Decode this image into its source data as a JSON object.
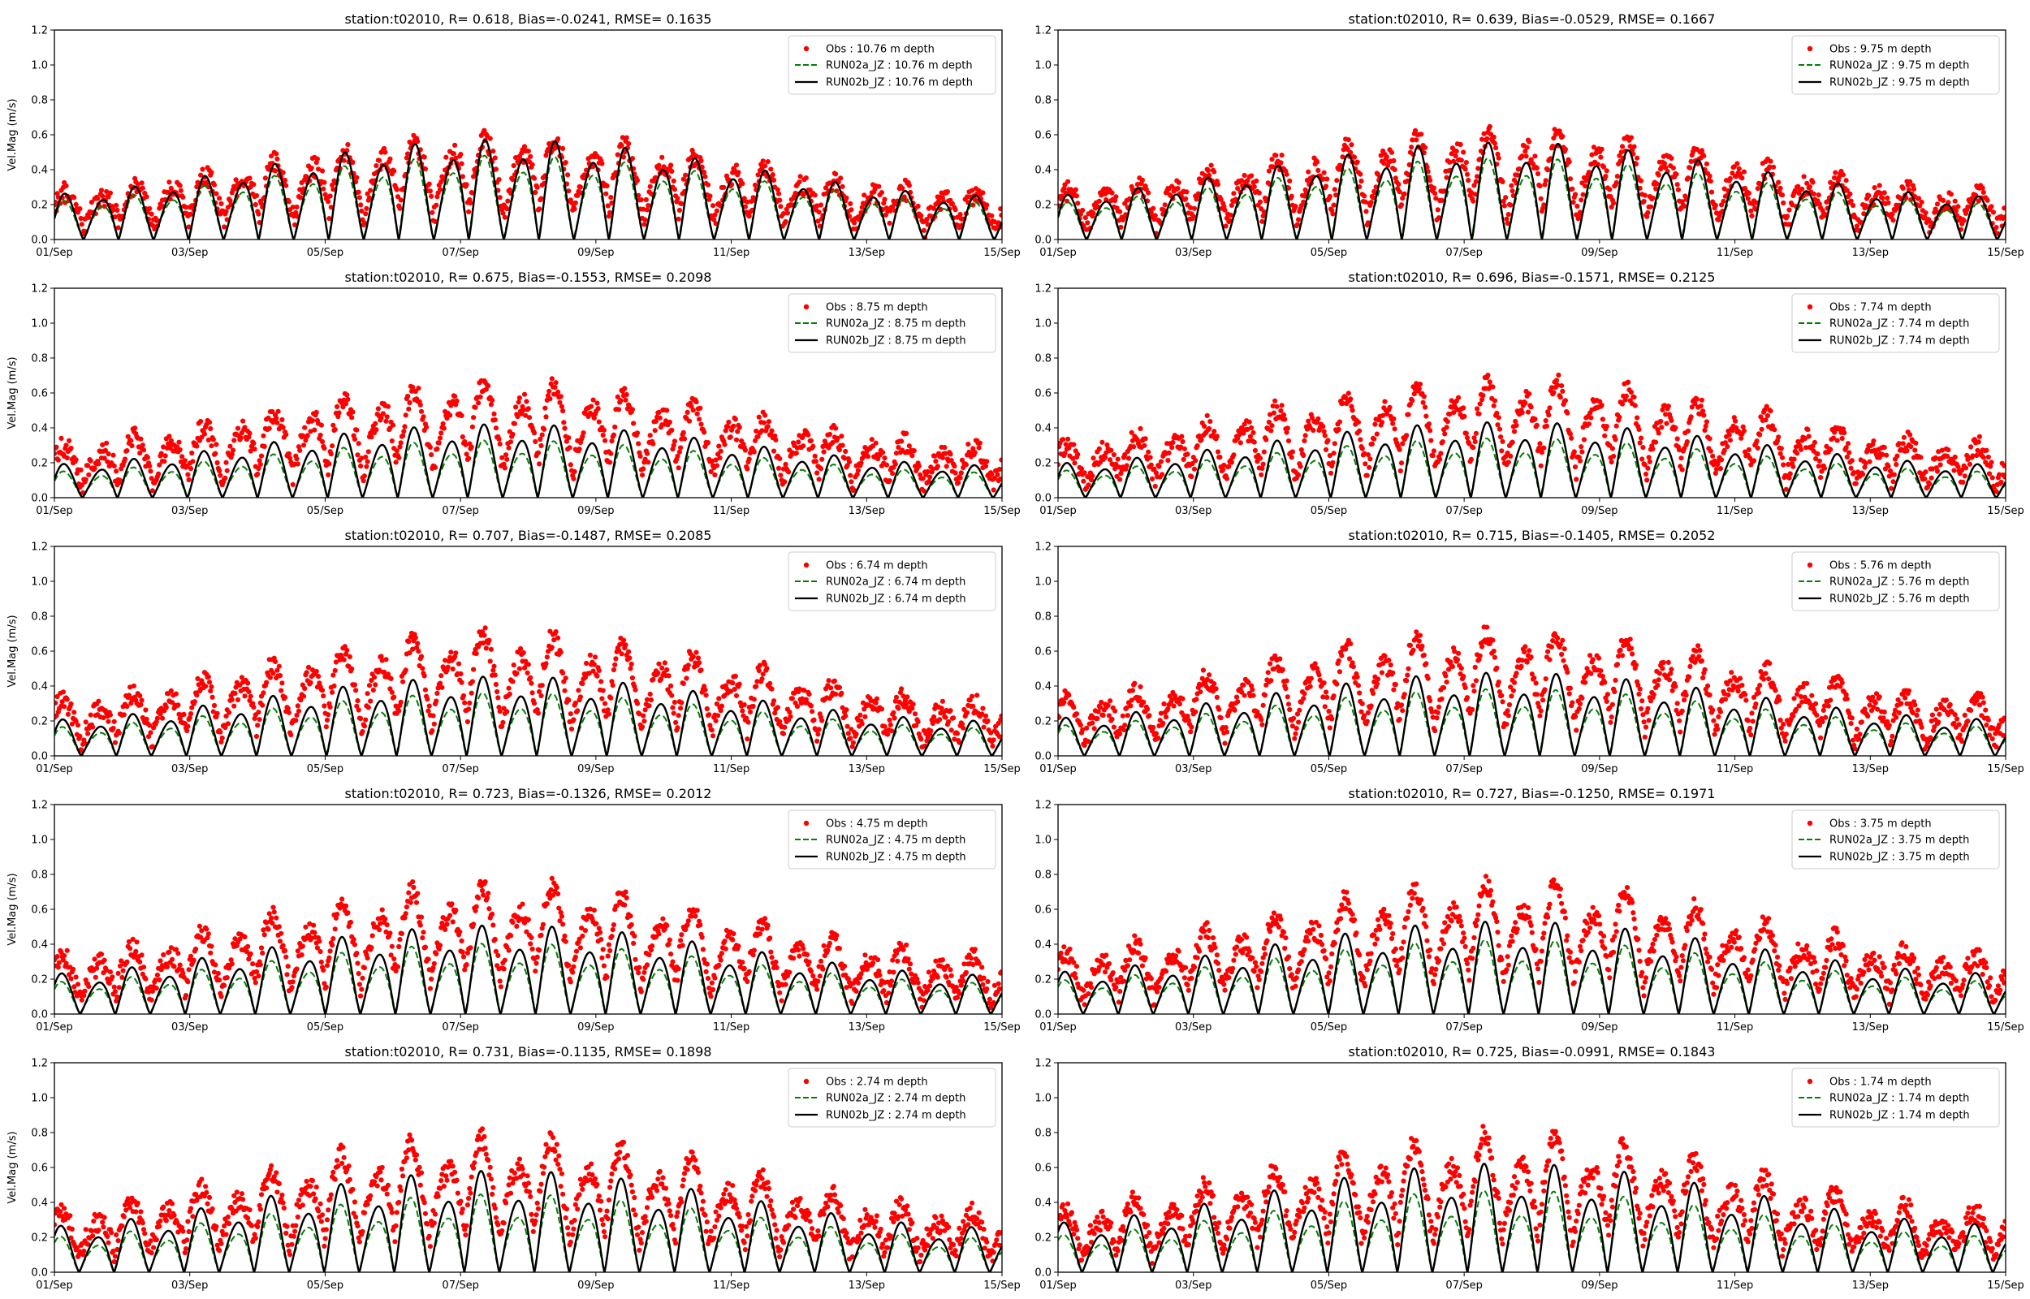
{
  "colors": {
    "obs": "#ff0000",
    "run02a": "#008000",
    "run02b": "#000000"
  },
  "chart_data": [
    {
      "type": "line",
      "title": "station:t02010, R= 0.618, Bias=-0.0241, RMSE= 0.1635",
      "ylabel": "Vel.Mag (m/s)",
      "depth": 10.76,
      "legend": [
        "Obs : 10.76 m depth",
        "RUN02a_JZ : 10.76 m depth",
        "RUN02b_JZ : 10.76 m depth"
      ],
      "series": [
        {
          "name": "Obs : 10.76 m depth",
          "obs_peak": 0.62
        },
        {
          "name": "RUN02a_JZ : 10.76 m depth",
          "model_peak": 0.52
        },
        {
          "name": "RUN02b_JZ : 10.76 m depth",
          "model_peak": 0.62
        }
      ]
    },
    {
      "type": "line",
      "title": "station:t02010, R= 0.639, Bias=-0.0529, RMSE= 0.1667",
      "ylabel": "",
      "depth": 9.75,
      "legend": [
        "Obs : 9.75 m depth",
        "RUN02a_JZ : 9.75 m depth",
        "RUN02b_JZ : 9.75 m depth"
      ],
      "series": [
        {
          "name": "Obs : 9.75 m depth",
          "obs_peak": 0.64
        },
        {
          "name": "RUN02a_JZ : 9.75 m depth",
          "model_peak": 0.5
        },
        {
          "name": "RUN02b_JZ : 9.75 m depth",
          "model_peak": 0.6
        }
      ]
    },
    {
      "type": "line",
      "title": "station:t02010, R= 0.675, Bias=-0.1553, RMSE= 0.2098",
      "ylabel": "Vel.Mag (m/s)",
      "depth": 8.75,
      "legend": [
        "Obs : 8.75 m depth",
        "RUN02a_JZ : 8.75 m depth",
        "RUN02b_JZ : 8.75 m depth"
      ],
      "series": [
        {
          "name": "Obs : 8.75 m depth",
          "obs_peak": 0.68
        },
        {
          "name": "RUN02a_JZ : 8.75 m depth",
          "model_peak": 0.35
        },
        {
          "name": "RUN02b_JZ : 8.75 m depth",
          "model_peak": 0.45
        }
      ]
    },
    {
      "type": "line",
      "title": "station:t02010, R= 0.696, Bias=-0.1571, RMSE= 0.2125",
      "ylabel": "",
      "depth": 7.74,
      "legend": [
        "Obs : 7.74 m depth",
        "RUN02a_JZ : 7.74 m depth",
        "RUN02b_JZ : 7.74 m depth"
      ],
      "series": [
        {
          "name": "Obs : 7.74 m depth",
          "obs_peak": 0.7
        },
        {
          "name": "RUN02a_JZ : 7.74 m depth",
          "model_peak": 0.36
        },
        {
          "name": "RUN02b_JZ : 7.74 m depth",
          "model_peak": 0.46
        }
      ]
    },
    {
      "type": "line",
      "title": "station:t02010, R= 0.707, Bias=-0.1487, RMSE= 0.2085",
      "ylabel": "Vel.Mag (m/s)",
      "depth": 6.74,
      "legend": [
        "Obs : 6.74 m depth",
        "RUN02a_JZ : 6.74 m depth",
        "RUN02b_JZ : 6.74 m depth"
      ],
      "series": [
        {
          "name": "Obs : 6.74 m depth",
          "obs_peak": 0.72
        },
        {
          "name": "RUN02a_JZ : 6.74 m depth",
          "model_peak": 0.38
        },
        {
          "name": "RUN02b_JZ : 6.74 m depth",
          "model_peak": 0.48
        }
      ]
    },
    {
      "type": "line",
      "title": "station:t02010, R= 0.715, Bias=-0.1405, RMSE= 0.2052",
      "ylabel": "",
      "depth": 5.76,
      "legend": [
        "Obs : 5.76 m depth",
        "RUN02a_JZ : 5.76 m depth",
        "RUN02b_JZ : 5.76 m depth"
      ],
      "series": [
        {
          "name": "Obs : 5.76 m depth",
          "obs_peak": 0.74
        },
        {
          "name": "RUN02a_JZ : 5.76 m depth",
          "model_peak": 0.4
        },
        {
          "name": "RUN02b_JZ : 5.76 m depth",
          "model_peak": 0.5
        }
      ]
    },
    {
      "type": "line",
      "title": "station:t02010, R= 0.723, Bias=-0.1326, RMSE= 0.2012",
      "ylabel": "Vel.Mag (m/s)",
      "depth": 4.75,
      "legend": [
        "Obs : 4.75 m depth",
        "RUN02a_JZ : 4.75 m depth",
        "RUN02b_JZ : 4.75 m depth"
      ],
      "series": [
        {
          "name": "Obs : 4.75 m depth",
          "obs_peak": 0.76
        },
        {
          "name": "RUN02a_JZ : 4.75 m depth",
          "model_peak": 0.42
        },
        {
          "name": "RUN02b_JZ : 4.75 m depth",
          "model_peak": 0.53
        }
      ]
    },
    {
      "type": "line",
      "title": "station:t02010, R= 0.727, Bias=-0.1250, RMSE= 0.1971",
      "ylabel": "",
      "depth": 3.75,
      "legend": [
        "Obs : 3.75 m depth",
        "RUN02a_JZ : 3.75 m depth",
        "RUN02b_JZ : 3.75 m depth"
      ],
      "series": [
        {
          "name": "Obs : 3.75 m depth",
          "obs_peak": 0.77
        },
        {
          "name": "RUN02a_JZ : 3.75 m depth",
          "model_peak": 0.44
        },
        {
          "name": "RUN02b_JZ : 3.75 m depth",
          "model_peak": 0.55
        }
      ]
    },
    {
      "type": "line",
      "title": "station:t02010, R= 0.731, Bias=-0.1135, RMSE= 0.1898",
      "ylabel": "Vel.Mag (m/s)",
      "depth": 2.74,
      "legend": [
        "Obs : 2.74 m depth",
        "RUN02a_JZ : 2.74 m depth",
        "RUN02b_JZ : 2.74 m depth"
      ],
      "series": [
        {
          "name": "Obs : 2.74 m depth",
          "obs_peak": 0.79
        },
        {
          "name": "RUN02a_JZ : 2.74 m depth",
          "model_peak": 0.46
        },
        {
          "name": "RUN02b_JZ : 2.74 m depth",
          "model_peak": 0.6
        }
      ]
    },
    {
      "type": "line",
      "title": "station:t02010, R= 0.725, Bias=-0.0991, RMSE= 0.1843",
      "ylabel": "",
      "depth": 1.74,
      "legend": [
        "Obs : 1.74 m depth",
        "RUN02a_JZ : 1.74 m depth",
        "RUN02b_JZ : 1.74 m depth"
      ],
      "series": [
        {
          "name": "Obs : 1.74 m depth",
          "obs_peak": 0.8
        },
        {
          "name": "RUN02a_JZ : 1.74 m depth",
          "model_peak": 0.48
        },
        {
          "name": "RUN02b_JZ : 1.74 m depth",
          "model_peak": 0.64
        }
      ]
    }
  ],
  "axes": {
    "xlim": [
      "2009-09-01",
      "2009-09-15"
    ],
    "xticks": [
      "01/Sep",
      "03/Sep",
      "05/Sep",
      "07/Sep",
      "09/Sep",
      "11/Sep",
      "13/Sep",
      "15/Sep"
    ],
    "ylim": [
      0.0,
      1.2
    ],
    "yticks": [
      "0.0",
      "0.2",
      "0.4",
      "0.6",
      "0.8",
      "1.0",
      "1.2"
    ],
    "grid": false,
    "legend_placement": "top-right"
  }
}
